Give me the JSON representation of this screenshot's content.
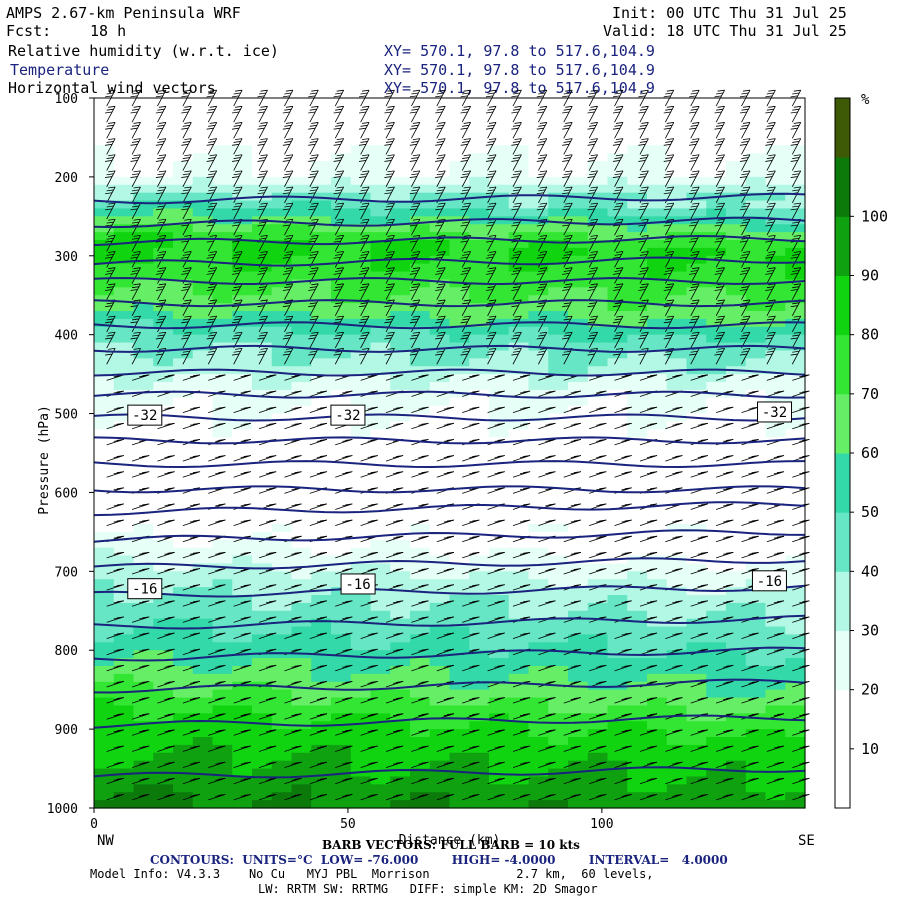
{
  "header": {
    "title": "AMPS 2.67-km Peninsula WRF",
    "fcst_label": "Fcst:",
    "fcst_value": "18 h",
    "init": "Init: 00 UTC Thu 31 Jul 25",
    "valid": "Valid: 18 UTC Thu 31 Jul 25",
    "field1": "Relative humidity (w.r.t. ice)",
    "field2": "Temperature",
    "field3": "Horizontal wind vectors",
    "xy1": "XY= 570.1, 97.8 to 517.6,104.9",
    "xy2": "XY= 570.1, 97.8 to 517.6,104.9",
    "xy3": "XY= 570.1, 97.8 to 517.6,104.9"
  },
  "footer": {
    "nw": "NW",
    "se": "SE",
    "barb": "BARB VECTORS: FULL BARB = 10 kts",
    "contours": "CONTOURS:  UNITS=°C  LOW= -76.000        HIGH= -4.0000        INTERVAL=   4.0000",
    "model_info": "Model Info: V4.3.3    No Cu   MYJ PBL  Morrison            2.7 km,  60 levels,",
    "model_info2": "LW: RRTM SW: RRTMG   DIFF: simple KM: 2D Smagor"
  },
  "colors": {
    "temperature_contour": "#1a237e",
    "rh_scale": [
      "#ffffff",
      "#ffffff",
      "#e6fff7",
      "#b3f7e5",
      "#66e6c4",
      "#33d9a8",
      "#66ef66",
      "#33e633",
      "#11d411",
      "#0fa10f",
      "#0b7a0b",
      "#3f5a07"
    ]
  },
  "chart_data": {
    "type": "heatmap",
    "xlabel": "Distance (km)",
    "ylabel": "Pressure (hPa)",
    "xlim": [
      0,
      140
    ],
    "ylim": [
      1000,
      100
    ],
    "x_ticks": [
      "0",
      "50",
      "100"
    ],
    "y_ticks": [
      "100",
      "200",
      "300",
      "400",
      "500",
      "600",
      "700",
      "800",
      "900",
      "1000"
    ],
    "colorbar": {
      "unit": "%",
      "ticks": [
        "10",
        "20",
        "30",
        "40",
        "50",
        "60",
        "70",
        "80",
        "90",
        "100"
      ],
      "bounds": [
        0,
        10,
        20,
        30,
        40,
        50,
        60,
        70,
        80,
        90,
        100,
        110
      ]
    },
    "rh_profile": [
      {
        "p": 100,
        "rh": 8
      },
      {
        "p": 200,
        "rh": 22
      },
      {
        "p": 240,
        "rh": 55
      },
      {
        "p": 280,
        "rh": 82
      },
      {
        "p": 320,
        "rh": 75
      },
      {
        "p": 360,
        "rh": 65
      },
      {
        "p": 400,
        "rh": 45
      },
      {
        "p": 440,
        "rh": 35
      },
      {
        "p": 480,
        "rh": 22
      },
      {
        "p": 560,
        "rh": 12
      },
      {
        "p": 640,
        "rh": 15
      },
      {
        "p": 700,
        "rh": 35
      },
      {
        "p": 760,
        "rh": 48
      },
      {
        "p": 820,
        "rh": 62
      },
      {
        "p": 880,
        "rh": 82
      },
      {
        "p": 940,
        "rh": 92
      },
      {
        "p": 1000,
        "rh": 103
      }
    ],
    "temperature_isotherm_pressures": [
      230,
      260,
      283,
      310,
      332,
      360,
      388,
      418,
      448,
      476,
      505,
      534,
      564,
      596,
      625,
      660,
      695,
      730,
      770,
      810,
      850,
      895,
      960
    ],
    "temperature_labels": [
      {
        "text": "-32",
        "x": 10,
        "p": 502
      },
      {
        "text": "-32",
        "x": 50,
        "p": 502
      },
      {
        "text": "-32",
        "x": 134,
        "p": 498
      },
      {
        "text": "-16",
        "x": 10,
        "p": 722
      },
      {
        "text": "-16",
        "x": 52,
        "p": 716
      },
      {
        "text": "-16",
        "x": 133,
        "p": 712
      }
    ]
  }
}
